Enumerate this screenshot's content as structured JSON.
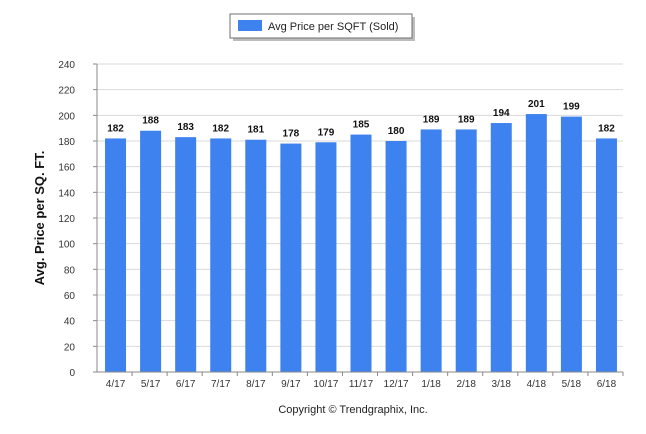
{
  "chart_data": {
    "type": "bar",
    "categories": [
      "4/17",
      "5/17",
      "6/17",
      "7/17",
      "8/17",
      "9/17",
      "10/17",
      "11/17",
      "12/17",
      "1/18",
      "2/18",
      "3/18",
      "4/18",
      "5/18",
      "6/18"
    ],
    "series": [
      {
        "name": "Avg Price per SQFT (Sold)",
        "values": [
          182,
          188,
          183,
          182,
          181,
          178,
          179,
          185,
          180,
          189,
          189,
          194,
          201,
          199,
          182
        ]
      }
    ],
    "xlabel": "",
    "ylabel": "Avg. Price per SQ. FT.",
    "ylim": [
      0,
      240
    ],
    "yticks": [
      0,
      20,
      40,
      60,
      80,
      100,
      120,
      140,
      160,
      180,
      200,
      220,
      240
    ],
    "grid": true,
    "legend_position": "top-center",
    "data_labels": true,
    "footer": "Copyright © Trendgraphix, Inc.",
    "colors": {
      "bar": "#3e82f0",
      "grid": "#d9d9d9",
      "axis": "#888888"
    }
  }
}
